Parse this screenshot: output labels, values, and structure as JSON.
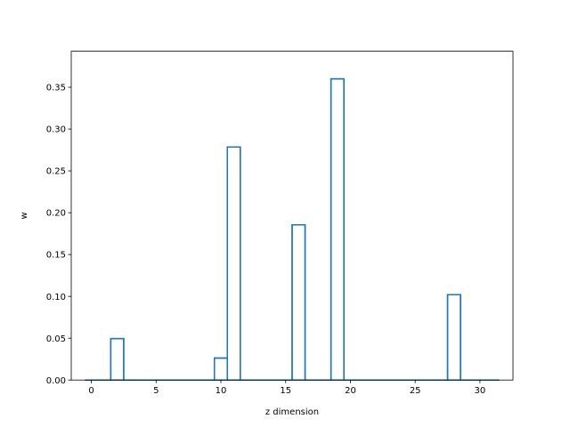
{
  "chart_data": {
    "type": "bar",
    "style": "step-outline",
    "xlabel": "z dimension",
    "ylabel": "w",
    "xlim": [
      -1.55,
      32.55
    ],
    "ylim": [
      0,
      0.393
    ],
    "x": [
      0,
      1,
      2,
      3,
      4,
      5,
      6,
      7,
      8,
      9,
      10,
      11,
      12,
      13,
      14,
      15,
      16,
      17,
      18,
      19,
      20,
      21,
      22,
      23,
      24,
      25,
      26,
      27,
      28,
      29,
      30,
      31
    ],
    "values": [
      0,
      0,
      0.0495,
      0,
      0,
      0,
      0,
      0,
      0,
      0,
      0.0262,
      0.2785,
      0,
      0,
      0,
      0,
      0.1855,
      0,
      0,
      0.36,
      0,
      0,
      0,
      0,
      0,
      0,
      0,
      0,
      0.102,
      0,
      0,
      0
    ],
    "x_ticks": [
      0,
      5,
      10,
      15,
      20,
      25,
      30
    ],
    "x_tick_labels": [
      "0",
      "5",
      "10",
      "15",
      "20",
      "25",
      "30"
    ],
    "y_ticks": [
      0,
      0.05,
      0.1,
      0.15,
      0.2,
      0.25,
      0.3,
      0.35
    ],
    "y_tick_labels": [
      "0.00",
      "0.05",
      "0.10",
      "0.15",
      "0.20",
      "0.25",
      "0.30",
      "0.35"
    ],
    "grid": false,
    "colors": {
      "line": "#1f77b4",
      "axes": "#000000"
    }
  }
}
